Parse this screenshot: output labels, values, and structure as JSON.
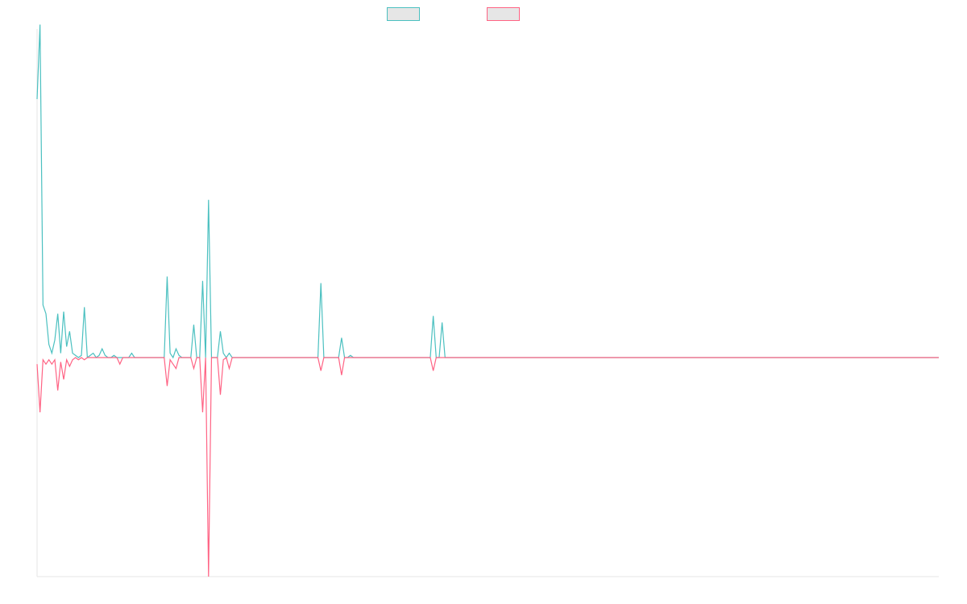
{
  "chart_data": {
    "type": "line",
    "title": "",
    "xlabel": "",
    "ylabel": "",
    "ylim": [
      -100,
      150
    ],
    "grid": false,
    "legend_position": "top-center",
    "series": [
      {
        "name": "",
        "color": "#4bc0c0",
        "fill": "#e6e6e6",
        "values": [
          118,
          152,
          24,
          20,
          6,
          2,
          8,
          20,
          2,
          21,
          5,
          12,
          2,
          1,
          0,
          1,
          23,
          0,
          1,
          2,
          0,
          1,
          4,
          1,
          0,
          0,
          1,
          0,
          0,
          0,
          0,
          0,
          2,
          0,
          0,
          0,
          0,
          0,
          0,
          0,
          0,
          0,
          0,
          0,
          37,
          2,
          0,
          4,
          1,
          0,
          0,
          0,
          0,
          15,
          0,
          0,
          35,
          0,
          72,
          0,
          0,
          0,
          12,
          2,
          0,
          2,
          0,
          0,
          0,
          0,
          0,
          0,
          0,
          0,
          0,
          0,
          0,
          0,
          0,
          0,
          0,
          0,
          0,
          0,
          0,
          0,
          0,
          0,
          0,
          0,
          0,
          0,
          0,
          0,
          0,
          0,
          34,
          0,
          0,
          0,
          0,
          0,
          0,
          9,
          0,
          0,
          1,
          0,
          0,
          0,
          0,
          0,
          0,
          0,
          0,
          0,
          0,
          0,
          0,
          0,
          0,
          0,
          0,
          0,
          0,
          0,
          0,
          0,
          0,
          0,
          0,
          0,
          0,
          0,
          19,
          0,
          0,
          16,
          0,
          0,
          0,
          0,
          0,
          0,
          0,
          0,
          0,
          0,
          0,
          0,
          0,
          0,
          0,
          0,
          0,
          0,
          0,
          0,
          0,
          0,
          0,
          0,
          0,
          0,
          0,
          0,
          0,
          0,
          0,
          0,
          0,
          0,
          0,
          0,
          0,
          0,
          0,
          0,
          0,
          0,
          0,
          0,
          0,
          0,
          0,
          0,
          0,
          0,
          0,
          0,
          0,
          0,
          0,
          0,
          0,
          0,
          0,
          0,
          0,
          0,
          0,
          0,
          0,
          0,
          0,
          0,
          0,
          0,
          0,
          0,
          0,
          0,
          0,
          0,
          0,
          0,
          0,
          0,
          0,
          0,
          0,
          0,
          0,
          0,
          0,
          0,
          0,
          0,
          0,
          0,
          0,
          0,
          0,
          0,
          0,
          0,
          0,
          0,
          0,
          0,
          0,
          0,
          0,
          0,
          0,
          0,
          0,
          0,
          0,
          0,
          0,
          0,
          0,
          0,
          0,
          0,
          0,
          0,
          0,
          0,
          0,
          0,
          0,
          0,
          0,
          0,
          0,
          0,
          0,
          0,
          0,
          0,
          0,
          0,
          0,
          0,
          0,
          0,
          0,
          0,
          0,
          0,
          0,
          0,
          0,
          0,
          0,
          0,
          0,
          0,
          0,
          0,
          0,
          0,
          0,
          0,
          0,
          0,
          0,
          0,
          0,
          0,
          0,
          0,
          0,
          0
        ]
      },
      {
        "name": "",
        "color": "#ff6384",
        "fill": "#e6e6e6",
        "values": [
          -3,
          -25,
          -1,
          -3,
          -1,
          -3,
          -1,
          -15,
          -2,
          -10,
          -1,
          -4,
          -1,
          0,
          -1,
          0,
          -1,
          0,
          0,
          0,
          0,
          0,
          0,
          0,
          0,
          0,
          0,
          0,
          -3,
          0,
          0,
          0,
          0,
          0,
          0,
          0,
          0,
          0,
          0,
          0,
          0,
          0,
          0,
          0,
          -13,
          -1,
          -3,
          -5,
          0,
          0,
          0,
          0,
          0,
          -5,
          0,
          0,
          -25,
          0,
          -100,
          0,
          0,
          0,
          -17,
          -1,
          0,
          -5,
          0,
          0,
          0,
          0,
          0,
          0,
          0,
          0,
          0,
          0,
          0,
          0,
          0,
          0,
          0,
          0,
          0,
          0,
          0,
          0,
          0,
          0,
          0,
          0,
          0,
          0,
          0,
          0,
          0,
          0,
          -6,
          0,
          0,
          0,
          0,
          0,
          0,
          -8,
          0,
          0,
          0,
          0,
          0,
          0,
          0,
          0,
          0,
          0,
          0,
          0,
          0,
          0,
          0,
          0,
          0,
          0,
          0,
          0,
          0,
          0,
          0,
          0,
          0,
          0,
          0,
          0,
          0,
          0,
          -6,
          0,
          0,
          0,
          0,
          0,
          0,
          0,
          0,
          0,
          0,
          0,
          0,
          0,
          0,
          0,
          0,
          0,
          0,
          0,
          0,
          0,
          0,
          0,
          0,
          0,
          0,
          0,
          0,
          0,
          0,
          0,
          0,
          0,
          0,
          0,
          0,
          0,
          0,
          0,
          0,
          0,
          0,
          0,
          0,
          0,
          0,
          0,
          0,
          0,
          0,
          0,
          0,
          0,
          0,
          0,
          0,
          0,
          0,
          0,
          0,
          0,
          0,
          0,
          0,
          0,
          0,
          0,
          0,
          0,
          0,
          0,
          0,
          0,
          0,
          0,
          0,
          0,
          0,
          0,
          0,
          0,
          0,
          0,
          0,
          0,
          0,
          0,
          0,
          0,
          0,
          0,
          0,
          0,
          0,
          0,
          0,
          0,
          0,
          0,
          0,
          0,
          0,
          0,
          0,
          0,
          0,
          0,
          0,
          0,
          0,
          0,
          0,
          0,
          0,
          0,
          0,
          0,
          0,
          0,
          0,
          0,
          0,
          0,
          0,
          0,
          0,
          0,
          0,
          0,
          0,
          0,
          0,
          0,
          0,
          0,
          0,
          0,
          0,
          0,
          0,
          0,
          0,
          0,
          0,
          0,
          0,
          0,
          0,
          0,
          0,
          0,
          0,
          0,
          0,
          0,
          0,
          0,
          0,
          0,
          0,
          0,
          0,
          0,
          0,
          0,
          0,
          0,
          0,
          0,
          0,
          0
        ]
      }
    ]
  }
}
